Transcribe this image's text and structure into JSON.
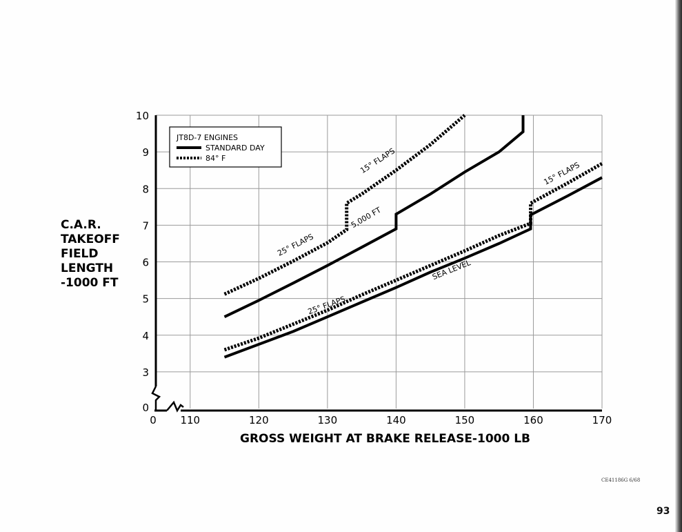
{
  "chart_data": {
    "type": "line",
    "title": "",
    "ylabel_lines": [
      "C.A.R.",
      "TAKEOFF",
      "FIELD",
      "LENGTH",
      "-1000 FT"
    ],
    "xlabel": "GROSS WEIGHT AT BRAKE RELEASE-1000 LB",
    "x_ticks": [
      "0",
      "110",
      "120",
      "130",
      "140",
      "150",
      "160",
      "170"
    ],
    "y_ticks": [
      "0",
      "3",
      "4",
      "5",
      "6",
      "7",
      "8",
      "9",
      "10"
    ],
    "xlim": [
      105,
      170
    ],
    "ylim": [
      2,
      10
    ],
    "grid": true,
    "axis_breaks": true,
    "legend": {
      "position": "top-left",
      "title": "JT8D-7 ENGINES",
      "entries": [
        {
          "label": "STANDARD DAY",
          "style": "solid"
        },
        {
          "label": "84° F",
          "style": "dashed"
        }
      ]
    },
    "series": [
      {
        "style": "solid",
        "points": [
          [
            115,
            3.4
          ],
          [
            120,
            3.75
          ],
          [
            125,
            4.1
          ],
          [
            130,
            4.5
          ],
          [
            135,
            4.9
          ],
          [
            140,
            5.3
          ],
          [
            145,
            5.72
          ],
          [
            150,
            6.1
          ],
          [
            155,
            6.5
          ],
          [
            159.6,
            6.9
          ],
          [
            159.6,
            7.28
          ],
          [
            165,
            7.8
          ],
          [
            170,
            8.3
          ]
        ]
      },
      {
        "style": "dashed",
        "points": [
          [
            115,
            3.6
          ],
          [
            120,
            3.92
          ],
          [
            125,
            4.3
          ],
          [
            130,
            4.68
          ],
          [
            135,
            5.1
          ],
          [
            140,
            5.5
          ],
          [
            145,
            5.9
          ],
          [
            150,
            6.3
          ],
          [
            155,
            6.72
          ],
          [
            159.6,
            7.05
          ],
          [
            159.6,
            7.6
          ],
          [
            165,
            8.15
          ],
          [
            170,
            8.68
          ]
        ]
      },
      {
        "style": "solid",
        "points": [
          [
            115,
            4.5
          ],
          [
            120,
            4.95
          ],
          [
            125,
            5.42
          ],
          [
            130,
            5.9
          ],
          [
            135,
            6.4
          ],
          [
            140,
            6.9
          ],
          [
            140,
            7.3
          ],
          [
            145,
            7.85
          ],
          [
            150,
            8.45
          ],
          [
            155,
            9.0
          ],
          [
            158.5,
            9.55
          ],
          [
            158.5,
            10.0
          ]
        ]
      },
      {
        "style": "dashed",
        "points": [
          [
            115,
            5.12
          ],
          [
            120,
            5.55
          ],
          [
            125,
            6.02
          ],
          [
            130,
            6.52
          ],
          [
            132.8,
            6.88
          ],
          [
            132.8,
            7.6
          ],
          [
            135,
            7.85
          ],
          [
            140,
            8.5
          ],
          [
            145,
            9.2
          ],
          [
            150,
            10.0
          ]
        ]
      }
    ],
    "annotations": [
      {
        "text": "25° FLAPS",
        "x": 125.5,
        "y": 6.4,
        "angle": -27
      },
      {
        "text": "15° FLAPS",
        "x": 137.5,
        "y": 8.7,
        "angle": -33
      },
      {
        "text": "5,000 FT",
        "x": 135.8,
        "y": 7.15,
        "angle": -30
      },
      {
        "text": "25° FLAPS",
        "x": 130,
        "y": 4.75,
        "angle": -20
      },
      {
        "text": "SEA LEVEL",
        "x": 148.2,
        "y": 5.72,
        "angle": -22
      },
      {
        "text": "15° FLAPS",
        "x": 164.3,
        "y": 8.35,
        "angle": -28
      }
    ]
  },
  "footer_code": "CE41186G 6/68",
  "page_number": "93"
}
